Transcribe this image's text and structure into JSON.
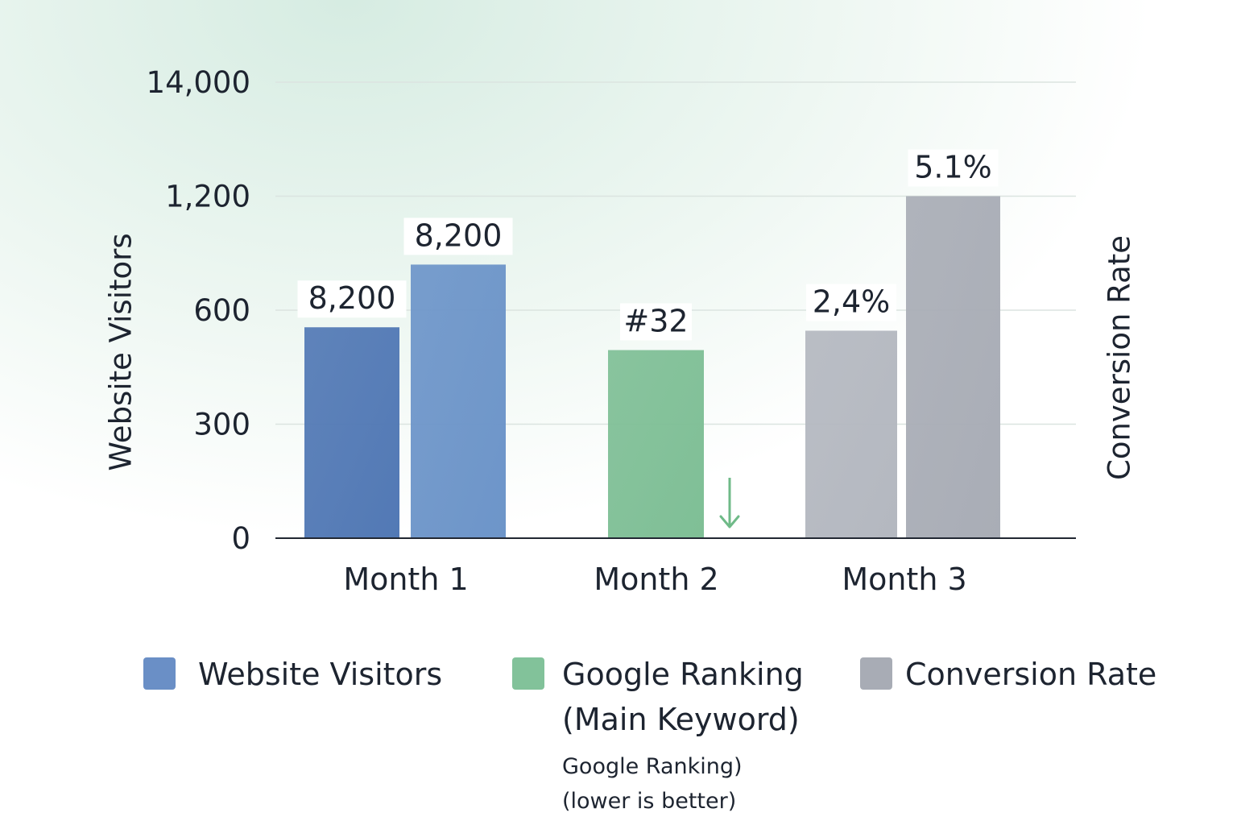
{
  "chart_data": {
    "type": "bar",
    "title": "",
    "categories": [
      "Month 1",
      "Month 2",
      "Month 3"
    ],
    "y_axis": {
      "label": "Website Visitors",
      "ticks": [
        "0",
        "300",
        "600",
        "1,200",
        "14,000"
      ]
    },
    "y2_axis": {
      "label": "Conversion Rate"
    },
    "bars": [
      {
        "category": "Month 1",
        "series": "Website Visitors",
        "level": 1.85,
        "label": "8,200",
        "color": "#5279b5"
      },
      {
        "category": "Month 1",
        "series": "Website Visitors",
        "level": 2.4,
        "label": "8,200",
        "color": "#6d95c9"
      },
      {
        "category": "Month 2",
        "series": "Google Ranking",
        "level": 1.65,
        "label": "#32",
        "color": "#7fbf96"
      },
      {
        "category": "Month 3",
        "series": "Conversion Rate",
        "level": 1.82,
        "label": "2,4%",
        "color": "#b4b8c0"
      },
      {
        "category": "Month 3",
        "series": "Conversion Rate",
        "level": 3.0,
        "label": "5.1%",
        "color": "#a9adb6"
      }
    ],
    "annotations": [
      {
        "category": "Month 2",
        "symbol": "down-arrow",
        "color": "#6fba88"
      }
    ],
    "legend": {
      "placement": "bottom",
      "items": [
        {
          "label": "Website Visitors",
          "color": "#6a8fc6"
        },
        {
          "label": "Google Ranking\n(Main Keyword)",
          "note": "Google Ranking)\n(lower is better)",
          "color": "#82c29a"
        },
        {
          "label": "Conversion Rate",
          "color": "#a8acb5"
        }
      ]
    },
    "grid": true
  }
}
